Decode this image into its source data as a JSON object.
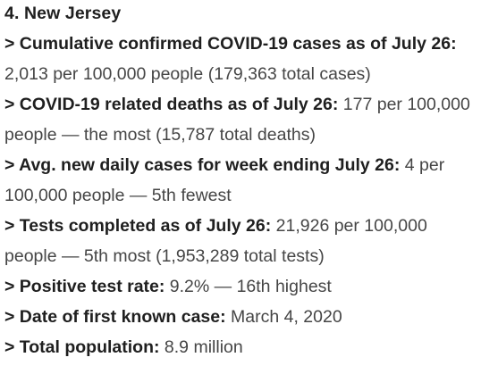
{
  "heading": "4. New Jersey",
  "items": [
    {
      "label": "> Cumulative confirmed COVID-19 cases as of July 26:",
      "value": "2,013 per 100,000 people (179,363 total cases)"
    },
    {
      "label": "> COVID-19 related deaths as of July 26:",
      "value": "177 per 100,000 people — the most (15,787 total deaths)"
    },
    {
      "label": "> Avg. new daily cases for week ending July 26:",
      "value": "4 per 100,000 people — 5th fewest"
    },
    {
      "label": "> Tests completed as of July 26:",
      "value": "21,926 per 100,000 people — 5th most (1,953,289 total tests)"
    },
    {
      "label": "> Positive test rate:",
      "value": "9.2% — 16th highest"
    },
    {
      "label": "> Date of first known case:",
      "value": "March 4, 2020"
    },
    {
      "label": "> Total population:",
      "value": "8.9 million"
    }
  ]
}
